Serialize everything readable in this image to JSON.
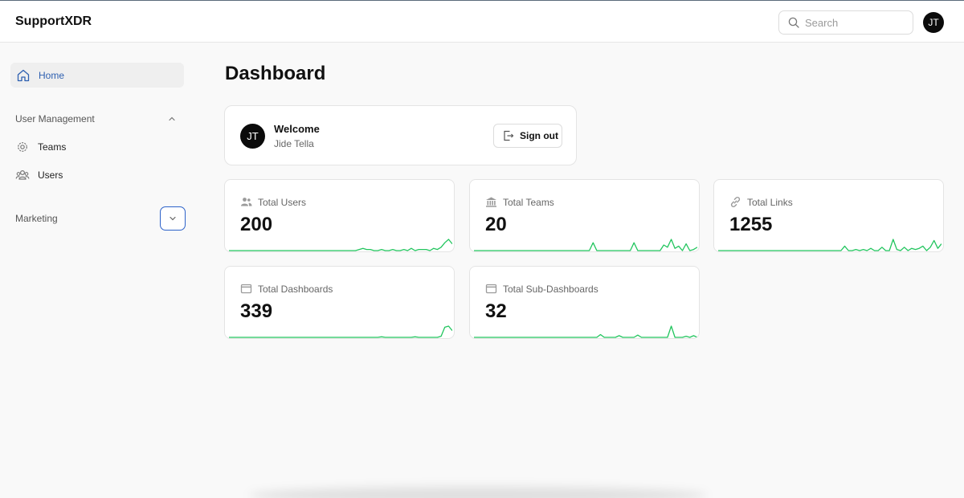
{
  "app": {
    "brand": "SupportXDR"
  },
  "header": {
    "search_placeholder": "Search",
    "user_initials": "JT"
  },
  "sidebar": {
    "home_label": "Home",
    "user_management": {
      "label": "User Management",
      "items": [
        "Teams",
        "Users"
      ]
    },
    "marketing": {
      "label": "Marketing"
    }
  },
  "main": {
    "title": "Dashboard",
    "welcome": {
      "initials": "JT",
      "title": "Welcome",
      "name": "Jide Tella",
      "sign_out_label": "Sign out"
    },
    "stats": [
      {
        "label": "Total Users",
        "value": "200",
        "icon": "users-icon",
        "spark": [
          0,
          0,
          0,
          0,
          0,
          0,
          0,
          0,
          0,
          0,
          0,
          0,
          0,
          0,
          0,
          0,
          0,
          0,
          0,
          0,
          0,
          0,
          0,
          0,
          0,
          0,
          0,
          0,
          0,
          0,
          0,
          0,
          0,
          0,
          0,
          0.1,
          0.2,
          0.1,
          0.1,
          0,
          0,
          0.1,
          0,
          0,
          0.1,
          0,
          0,
          0.1,
          0,
          0.2,
          0,
          0.1,
          0.1,
          0.1,
          0,
          0.2,
          0.1,
          0.3,
          0.7,
          1,
          0.6
        ]
      },
      {
        "label": "Total Teams",
        "value": "20",
        "icon": "bank-icon",
        "spark": [
          0,
          0,
          0,
          0,
          0,
          0,
          0,
          0,
          0,
          0,
          0,
          0,
          0,
          0,
          0,
          0,
          0,
          0,
          0,
          0,
          0,
          0,
          0,
          0,
          0,
          0,
          0,
          0,
          0,
          0,
          0,
          0,
          0.7,
          0,
          0,
          0,
          0,
          0,
          0,
          0,
          0,
          0,
          0,
          0.7,
          0,
          0,
          0,
          0,
          0,
          0,
          0,
          0.5,
          0.3,
          1,
          0.2,
          0.4,
          0,
          0.6,
          0,
          0.1,
          0.3
        ]
      },
      {
        "label": "Total Links",
        "value": "1255",
        "icon": "link-icon",
        "spark": [
          0,
          0,
          0,
          0,
          0,
          0,
          0,
          0,
          0,
          0,
          0,
          0,
          0,
          0,
          0,
          0,
          0,
          0,
          0,
          0,
          0,
          0,
          0,
          0,
          0,
          0,
          0,
          0,
          0,
          0,
          0,
          0,
          0,
          0,
          0.4,
          0,
          0,
          0.1,
          0,
          0.1,
          0,
          0.2,
          0,
          0,
          0.3,
          0,
          0,
          1,
          0.1,
          0,
          0.3,
          0,
          0.2,
          0.1,
          0.2,
          0.4,
          0,
          0.3,
          0.9,
          0.2,
          0.6
        ]
      },
      {
        "label": "Total Dashboards",
        "value": "339",
        "icon": "window-icon",
        "spark": [
          0,
          0,
          0,
          0,
          0,
          0,
          0,
          0,
          0,
          0,
          0,
          0,
          0,
          0,
          0,
          0,
          0,
          0,
          0,
          0,
          0,
          0,
          0,
          0,
          0,
          0,
          0,
          0,
          0,
          0,
          0,
          0,
          0,
          0,
          0,
          0,
          0,
          0,
          0,
          0,
          0,
          0.05,
          0,
          0,
          0,
          0,
          0,
          0,
          0,
          0,
          0.05,
          0,
          0,
          0,
          0,
          0,
          0,
          0.1,
          0.9,
          1,
          0.6
        ]
      },
      {
        "label": "Total Sub-Dashboards",
        "value": "32",
        "icon": "window-icon",
        "spark": [
          0,
          0,
          0,
          0,
          0,
          0,
          0,
          0,
          0,
          0,
          0,
          0,
          0,
          0,
          0,
          0,
          0,
          0,
          0,
          0,
          0,
          0,
          0,
          0,
          0,
          0,
          0,
          0,
          0,
          0,
          0,
          0,
          0,
          0,
          0.25,
          0,
          0,
          0,
          0,
          0.15,
          0,
          0,
          0,
          0,
          0.2,
          0,
          0,
          0,
          0,
          0,
          0,
          0,
          0,
          1,
          0,
          0,
          0,
          0.1,
          0,
          0.15,
          0
        ]
      }
    ]
  },
  "colors": {
    "accent": "#2d5fb0",
    "spark": "#22c55e"
  }
}
